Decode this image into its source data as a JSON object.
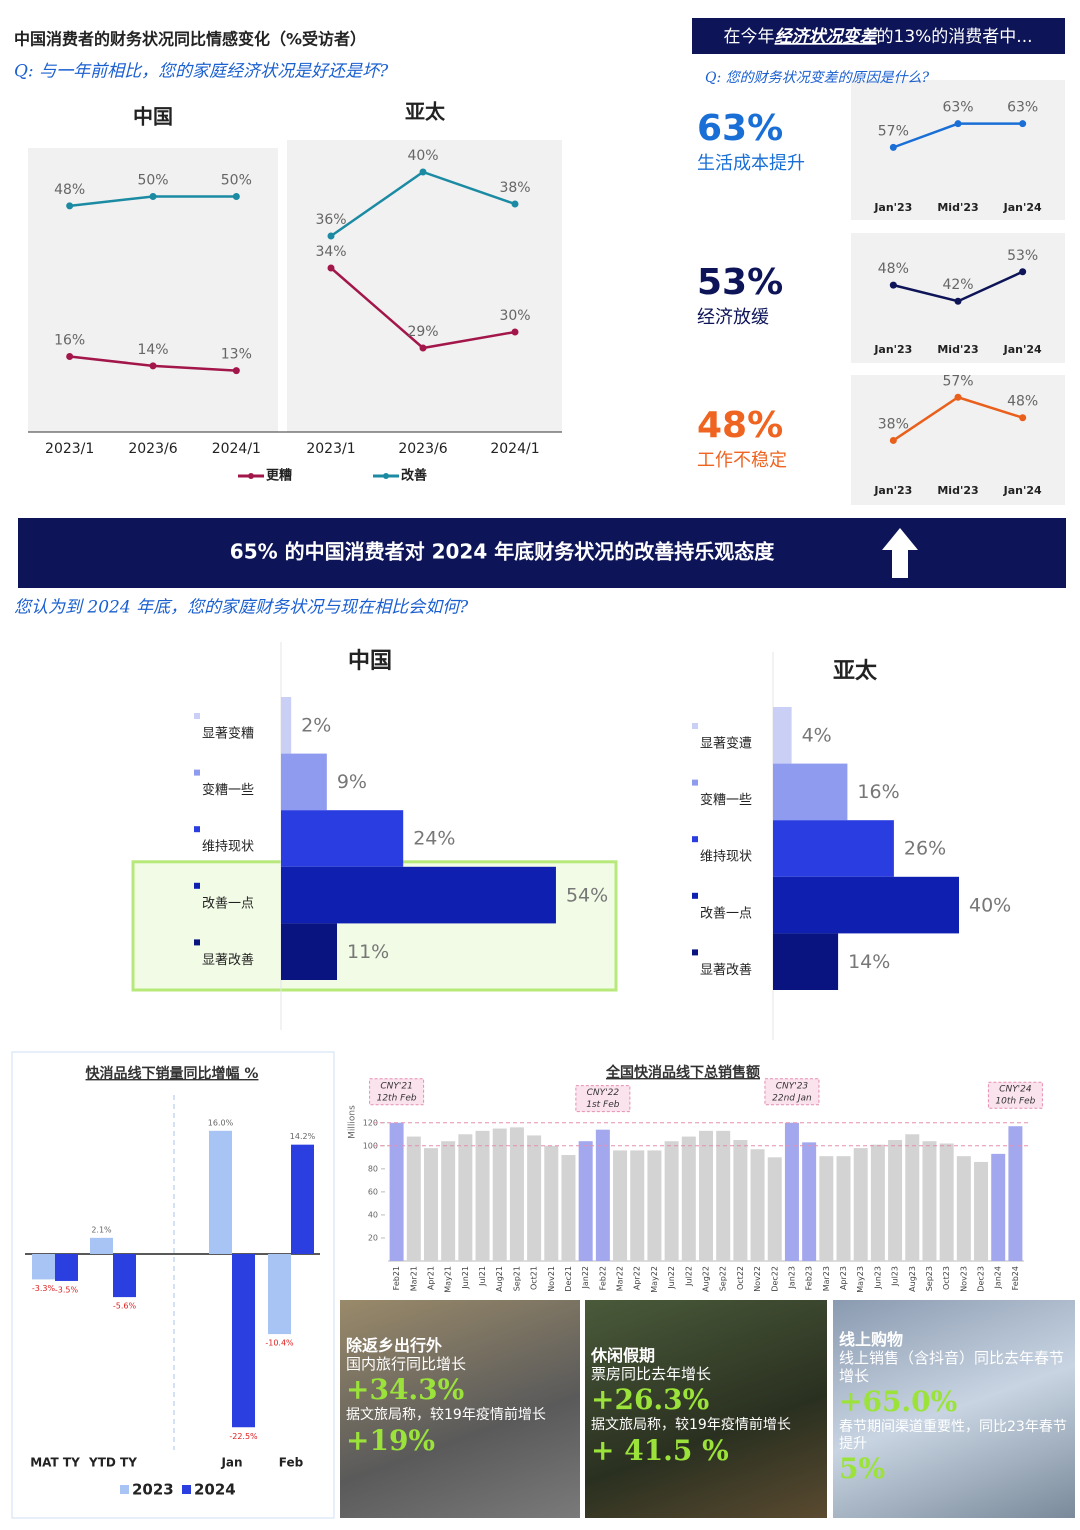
{
  "sentiment": {
    "title": "中国消费者的财务状况同比情感变化（%受访者）",
    "question": "Q: 与一年前相比，您的家庭经济状况是好还是坏?"
  },
  "reasons": {
    "header_prefix": "在今年",
    "header_emphasis": "经济状况变差",
    "header_suffix": "的13%的消费者中...",
    "question": "Q: 您的财务状况变差的原因是什么?"
  },
  "banner": {
    "text": "65% 的中国消费者对 2024 年底财务状况的改善持乐观态度",
    "question": "您认为到 2024 年底，您的家庭财务状况与现在相比会如何?"
  },
  "chart_data": [
    {
      "type": "line",
      "title": "中国",
      "categories": [
        "2023/1",
        "2023/6",
        "2024/1"
      ],
      "ylim": [
        -6,
        62
      ],
      "legend": "bottom",
      "series": [
        {
          "name": "更糟",
          "color": "#a3164a",
          "values": [
            16,
            14,
            13
          ],
          "value_labels": [
            "16%",
            "14%",
            "13%"
          ]
        },
        {
          "name": "改善",
          "color": "#1b8aa3",
          "values": [
            48,
            50,
            50
          ],
          "value_labels": [
            "48%",
            "50%",
            "50%"
          ]
        }
      ]
    },
    {
      "type": "line",
      "title": "亚太",
      "categories": [
        "2023/1",
        "2023/6",
        "2024/1"
      ],
      "ylim": [
        22,
        42
      ],
      "series": [
        {
          "name": "更糟",
          "color": "#a3164a",
          "values": [
            34,
            29,
            30
          ],
          "value_labels": [
            "34%",
            "29%",
            "30%"
          ]
        },
        {
          "name": "改善",
          "color": "#1b8aa3",
          "values": [
            36,
            40,
            38
          ],
          "value_labels": [
            "36%",
            "40%",
            "38%"
          ]
        }
      ]
    },
    {
      "type": "line",
      "headline": "63%",
      "subtitle": "生活成本提升",
      "headline_color": "#1a6fd6",
      "categories": [
        "Jan'23",
        "Mid'23",
        "Jan'24"
      ],
      "ylim": [
        50,
        69
      ],
      "series": [
        {
          "color": "#1a6fd6",
          "values": [
            57,
            63,
            63
          ],
          "value_labels": [
            "57%",
            "63%",
            "63%"
          ]
        }
      ]
    },
    {
      "type": "line",
      "headline": "53%",
      "subtitle": "经济放缓",
      "headline_color": "#0d1457",
      "categories": [
        "Jan'23",
        "Mid'23",
        "Jan'24"
      ],
      "ylim": [
        32,
        60
      ],
      "series": [
        {
          "color": "#0d1457",
          "values": [
            48,
            42,
            53
          ],
          "value_labels": [
            "48%",
            "42%",
            "53%"
          ]
        }
      ]
    },
    {
      "type": "line",
      "headline": "48%",
      "subtitle": "工作不稳定",
      "headline_color": "#ee6420",
      "categories": [
        "Jan'23",
        "Mid'23",
        "Jan'24"
      ],
      "ylim": [
        25,
        58
      ],
      "series": [
        {
          "color": "#e8601c",
          "values": [
            38,
            57,
            48
          ],
          "value_labels": [
            "38%",
            "57%",
            "48%"
          ]
        }
      ]
    },
    {
      "type": "hbar",
      "title": "中国",
      "categories": [
        "显著变糟",
        "变糟一些",
        "维持现状",
        "改善一点",
        "显著改善"
      ],
      "values": [
        2,
        9,
        24,
        54,
        11
      ],
      "value_labels": [
        "2%",
        "9%",
        "24%",
        "54%",
        "11%"
      ],
      "colors": [
        "#c9cff5",
        "#8f9bef",
        "#2a3de0",
        "#0f1fb0",
        "#0a1480"
      ],
      "xlim": [
        0,
        60
      ],
      "highlight": "改善一点"
    },
    {
      "type": "hbar",
      "title": "亚太",
      "categories": [
        "显著变遭",
        "变糟一些",
        "维持现状",
        "改善一点",
        "显著改善"
      ],
      "values": [
        4,
        16,
        26,
        40,
        14
      ],
      "value_labels": [
        "4%",
        "16%",
        "26%",
        "40%",
        "14%"
      ],
      "colors": [
        "#c9cff5",
        "#8f9bef",
        "#2a3de0",
        "#0f1fb0",
        "#0a1480"
      ],
      "xlim": [
        0,
        60
      ]
    },
    {
      "type": "gbar",
      "title": "快消品线下销量同比增幅 %",
      "categories": [
        "MAT TY",
        "YTD TY",
        "Jan",
        "Feb"
      ],
      "ylim": [
        -25,
        18
      ],
      "series": [
        {
          "name": "2023",
          "color": "#a7c4f5",
          "values": [
            -3.3,
            2.1,
            16,
            -10.4
          ],
          "value_labels": [
            "-3.3%",
            "2.1%",
            "16.0%",
            "-10.4%"
          ]
        },
        {
          "name": "2024",
          "color": "#2b3fe0",
          "values": [
            -3.5,
            -5.6,
            -22.5,
            14.2
          ],
          "value_labels": [
            "-3.5%",
            "-5.6%",
            "-22.5%",
            "14.2%"
          ]
        }
      ]
    },
    {
      "type": "cbar",
      "title": "全国快消品线下总销售额",
      "y_label": "Millions",
      "ylim": [
        0,
        125
      ],
      "yticks": [
        20,
        40,
        60,
        80,
        100,
        120
      ],
      "reference_lines": [
        100,
        120
      ],
      "categories": [
        "Feb21",
        "Mar21",
        "Apr21",
        "May21",
        "Jun21",
        "Jul21",
        "Aug21",
        "Sep21",
        "Oct21",
        "Nov21",
        "Dec21",
        "Jan22",
        "Feb22",
        "Mar22",
        "Apr22",
        "May22",
        "Jun22",
        "Jul22",
        "Aug22",
        "Sep22",
        "Oct22",
        "Nov22",
        "Dec22",
        "Jan23",
        "Feb23",
        "Mar23",
        "Apr23",
        "May23",
        "Jun23",
        "Jul23",
        "Aug23",
        "Sep23",
        "Oct23",
        "Nov23",
        "Dec23",
        "Jan24",
        "Feb24"
      ],
      "values": [
        120,
        108,
        98,
        104,
        110,
        113,
        115,
        116,
        109,
        100,
        92,
        104,
        114,
        96,
        96,
        96,
        104,
        108,
        113,
        113,
        105,
        97,
        90,
        120,
        103,
        91,
        91,
        98,
        101,
        105,
        110,
        104,
        102,
        91,
        86,
        93,
        117
      ],
      "colors": [
        "#a3a8ee",
        "#d3d3d3",
        "#d3d3d3",
        "#d3d3d3",
        "#d3d3d3",
        "#d3d3d3",
        "#d3d3d3",
        "#d3d3d3",
        "#d3d3d3",
        "#d3d3d3",
        "#d3d3d3",
        "#a3a8ee",
        "#a3a8ee",
        "#d3d3d3",
        "#d3d3d3",
        "#d3d3d3",
        "#d3d3d3",
        "#d3d3d3",
        "#d3d3d3",
        "#d3d3d3",
        "#d3d3d3",
        "#d3d3d3",
        "#d3d3d3",
        "#a3a8ee",
        "#a3a8ee",
        "#d3d3d3",
        "#d3d3d3",
        "#d3d3d3",
        "#d3d3d3",
        "#d3d3d3",
        "#d3d3d3",
        "#d3d3d3",
        "#d3d3d3",
        "#d3d3d3",
        "#d3d3d3",
        "#a3a8ee",
        "#a3a8ee"
      ],
      "annotations": [
        {
          "category": "Feb21",
          "lines": [
            "CNY'21",
            "12th Feb"
          ]
        },
        {
          "category": "Feb22",
          "lines": [
            "CNY'22",
            "1st Feb"
          ]
        },
        {
          "category": "Jan23",
          "lines": [
            "CNY'23",
            "22nd Jan"
          ]
        },
        {
          "category": "Feb24",
          "lines": [
            "CNY'24",
            "10th Feb"
          ]
        }
      ]
    }
  ],
  "cards": [
    {
      "title": "除返乡出行外",
      "subtitle": "国内旅行同比增长",
      "figure": "+34.3%",
      "note": "据文旅局称，较19年疫情前增长",
      "figure2": "+19%"
    },
    {
      "title": "休闲假期",
      "subtitle": "票房同比去年增长",
      "figure": "+26.3%",
      "note": "据文旅局称，较19年疫情前增长",
      "figure2": "+ 41.5 %"
    },
    {
      "title": "线上购物",
      "subtitle": "线上销售（含抖音）同比去年春节增长",
      "figure": "+65.0%",
      "note": "春节期间渠道重要性，同比23年春节提升",
      "figure2": "5%"
    }
  ]
}
